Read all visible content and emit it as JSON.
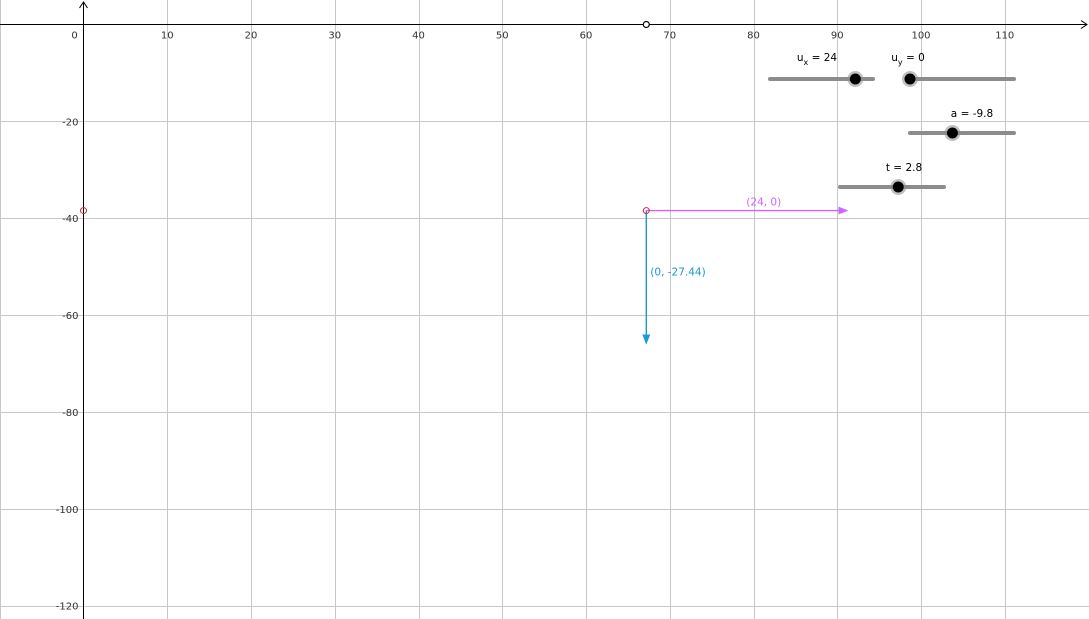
{
  "app": "GeoGebra Graphics View",
  "axes": {
    "x_range": [
      -10,
      120
    ],
    "y_range": [
      -122,
      5
    ],
    "x_tick_step": 10,
    "y_tick_step": 20,
    "x_tick_labels": [
      "0",
      "10",
      "20",
      "30",
      "40",
      "50",
      "60",
      "70",
      "80",
      "90",
      "100",
      "110"
    ],
    "y_tick_labels": [
      "-20",
      "-40",
      "-60",
      "-80",
      "-100",
      "-120"
    ],
    "grid": true,
    "grid_color": "#c8c8c8",
    "axis_color": "#000000"
  },
  "sliders": [
    {
      "id": "ux",
      "var": "u",
      "sub": "x",
      "text": " = 24",
      "value": 24,
      "min": -5,
      "max": 30
    },
    {
      "id": "uy",
      "var": "u",
      "sub": "y",
      "text": " = 0",
      "value": 0,
      "min": 0,
      "max": 30
    },
    {
      "id": "a",
      "var": "a",
      "sub": "",
      "text": " = -9.8",
      "value": -9.8,
      "min": -20,
      "max": 5
    },
    {
      "id": "t",
      "var": "t",
      "sub": "",
      "text": " = 2.8",
      "value": 2.8,
      "min": 0,
      "max": 5
    }
  ],
  "points": {
    "start": {
      "x": 0,
      "y": -38.42,
      "color": "#cc2244"
    },
    "projectile": {
      "x": 67.2,
      "y": -38.42,
      "color": "#cc2244"
    },
    "x_axis_marker": {
      "x": 67.2,
      "y": 0,
      "color": "#000000"
    }
  },
  "vectors": [
    {
      "id": "velocity-x",
      "label": "(24, 0)",
      "dx": 24,
      "dy": 0,
      "color": "#cc66ff"
    },
    {
      "id": "velocity-y",
      "label": "(0, -27.44)",
      "dx": 0,
      "dy": -27.44,
      "color": "#1a9ad6"
    }
  ]
}
